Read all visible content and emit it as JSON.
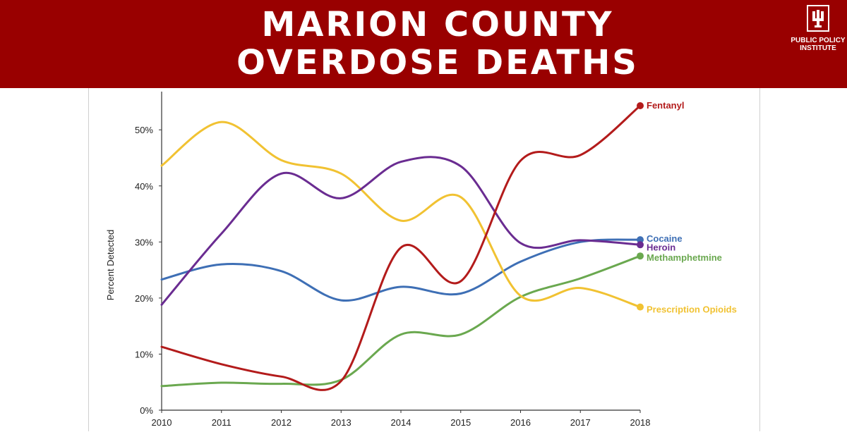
{
  "header": {
    "title_line1": "MARION COUNTY",
    "title_line2": "OVERDOSE DEATHS",
    "logo_line1": "PUBLIC POLICY",
    "logo_line2": "INSTITUTE",
    "logo_icon": "iu-trident-icon"
  },
  "colors": {
    "banner": "#990000",
    "text": "#ffffff"
  },
  "chart_data": {
    "type": "line",
    "title": "",
    "xlabel": "",
    "ylabel": "Percent Detected",
    "x": [
      2010,
      2011,
      2012,
      2013,
      2014,
      2015,
      2016,
      2017,
      2018
    ],
    "ylim": [
      0,
      55
    ],
    "y_ticks": [
      0,
      10,
      20,
      30,
      40,
      50
    ],
    "y_tick_labels": [
      "0%",
      "10%",
      "20%",
      "30%",
      "40%",
      "50%"
    ],
    "grid": false,
    "legend": "direct labels at line ends",
    "series": [
      {
        "name": "Fentanyl",
        "color": "#b31b1b",
        "values": [
          11.3,
          8.2,
          6.0,
          5.2,
          29.0,
          23.0,
          44.5,
          45.5,
          54.3
        ]
      },
      {
        "name": "Cocaine",
        "color": "#3e6fb5",
        "values": [
          23.3,
          26.0,
          24.8,
          19.6,
          22.0,
          20.8,
          26.5,
          30.0,
          30.4
        ]
      },
      {
        "name": "Heroin",
        "color": "#6a2c91",
        "values": [
          18.8,
          31.5,
          42.2,
          37.8,
          44.3,
          43.5,
          29.8,
          30.3,
          29.5
        ]
      },
      {
        "name": "Methamphetmine",
        "color": "#6aa84f",
        "values": [
          4.3,
          4.9,
          4.7,
          5.4,
          13.5,
          13.5,
          20.2,
          23.5,
          27.5
        ]
      },
      {
        "name": "Prescription Opioids",
        "color": "#f1c232",
        "values": [
          43.6,
          51.4,
          44.6,
          42.2,
          33.8,
          38.0,
          20.4,
          21.8,
          18.4
        ]
      }
    ]
  }
}
